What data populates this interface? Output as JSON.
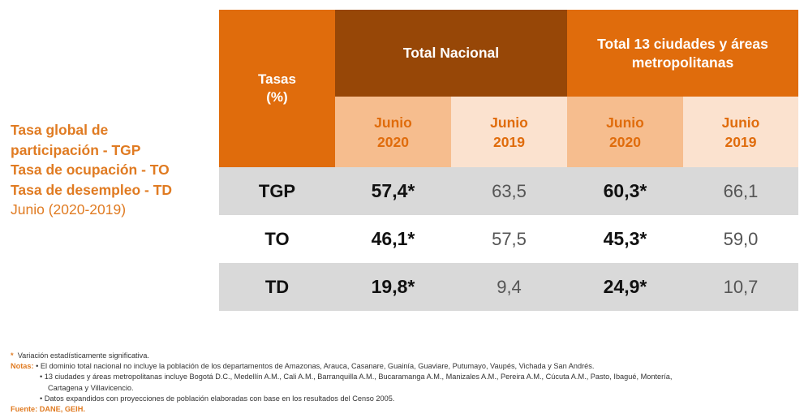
{
  "side_title": {
    "line1": "Tasa global de",
    "line2": "participación - TGP",
    "line3": "Tasa de ocupación - TO",
    "line4": "Tasa de desempleo - TD",
    "period": "Junio (2020-2019)"
  },
  "table": {
    "tasas_header_line1": "Tasas",
    "tasas_header_line2": "(%)",
    "group1": "Total Nacional",
    "group2_line1": "Total 13 ciudades y áreas",
    "group2_line2": "metropolitanas",
    "sub_month": "Junio",
    "sub_2020": "2020",
    "sub_2019": "2019",
    "rows": [
      {
        "label": "TGP",
        "nac_2020": "57,4*",
        "nac_2019": "63,5",
        "c13_2020": "60,3*",
        "c13_2019": "66,1"
      },
      {
        "label": "TO",
        "nac_2020": "46,1*",
        "nac_2019": "57,5",
        "c13_2020": "45,3*",
        "c13_2019": "59,0"
      },
      {
        "label": "TD",
        "nac_2020": "19,8*",
        "nac_2019": "9,4",
        "c13_2020": "24,9*",
        "c13_2019": "10,7"
      }
    ]
  },
  "footer": {
    "asterisk": "*",
    "variation": "Variación estadísticamente significativa.",
    "notas_label": "Notas:",
    "note1": "• El dominio total nacional no incluye la población de los departamentos de Amazonas, Arauca, Casanare, Guainía, Guaviare, Putumayo, Vaupés, Vichada y San Andrés.",
    "note2_line1": "• 13 ciudades y áreas metropolitanas incluye Bogotá D.C., Medellín A.M., Cali A.M., Barranquilla A.M., Bucaramanga A.M., Manizales A.M., Pereira A.M., Cúcuta A.M., Pasto, Ibagué, Montería,",
    "note2_line2": "Cartagena y Villavicencio.",
    "note3": "• Datos expandidos con proyecciones de población elaboradas con base en los resultados del Censo 2005.",
    "fuente": "Fuente: DANE, GEIH."
  }
}
